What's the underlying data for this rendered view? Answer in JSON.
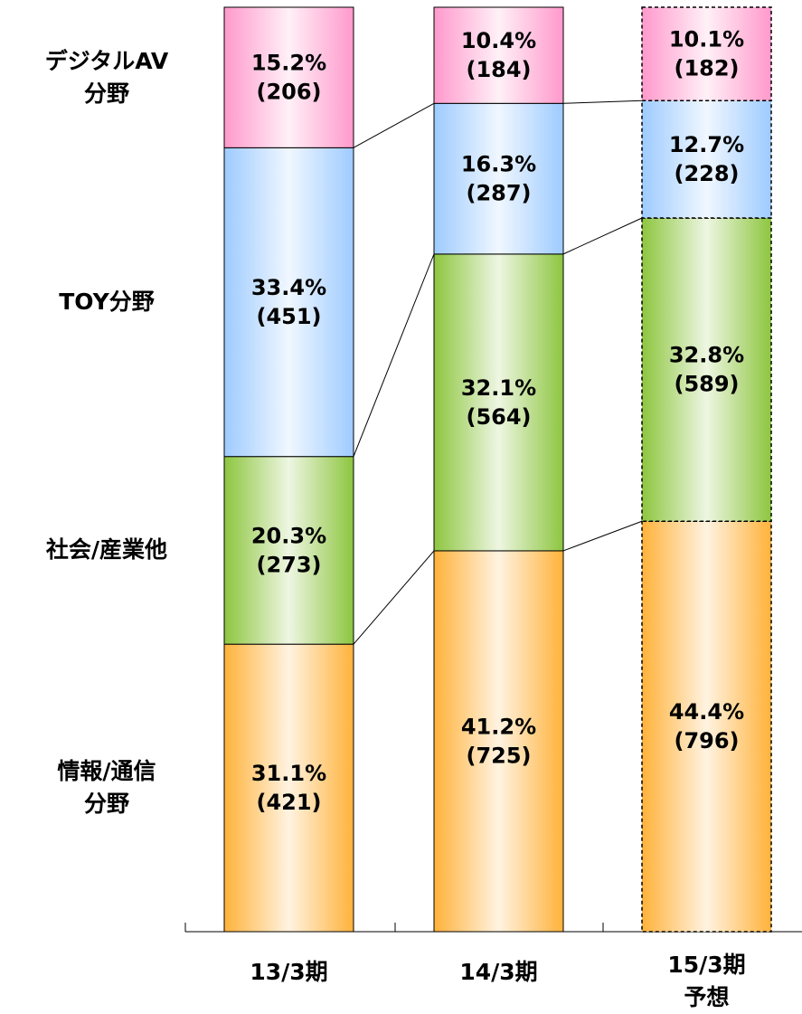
{
  "chart_data": {
    "type": "stacked_bar_100",
    "categories": [
      "13/3期",
      "14/3期",
      "15/3期\n予想"
    ],
    "border_styles": [
      "solid",
      "solid",
      "dashed"
    ],
    "ylim": [
      0,
      100
    ],
    "series": [
      {
        "name": "情報/通信\n分野",
        "color": "#ffb23a",
        "values": [
          31.1,
          41.2,
          44.4
        ],
        "value_labels": [
          "31.1%",
          "41.2%",
          "44.4%"
        ],
        "counts": [
          421,
          725,
          796
        ],
        "count_labels": [
          "(421)",
          "(725)",
          "(796)"
        ]
      },
      {
        "name": "社会/産業他",
        "color": "#8dc63f",
        "values": [
          20.3,
          32.1,
          32.8
        ],
        "value_labels": [
          "20.3%",
          "32.1%",
          "32.8%"
        ],
        "counts": [
          273,
          564,
          589
        ],
        "count_labels": [
          "(273)",
          "(564)",
          "(589)"
        ]
      },
      {
        "name": "TOY分野",
        "color": "#9ecbff",
        "values": [
          33.4,
          16.3,
          12.7
        ],
        "value_labels": [
          "33.4%",
          "16.3%",
          "12.7%"
        ],
        "counts": [
          451,
          287,
          228
        ],
        "count_labels": [
          "(451)",
          "(287)",
          "(228)"
        ]
      },
      {
        "name": "デジタルAV\n分野",
        "color": "#ff99cc",
        "values": [
          15.2,
          10.4,
          10.1
        ],
        "value_labels": [
          "15.2%",
          "10.4%",
          "10.1%"
        ],
        "counts": [
          206,
          184,
          182
        ],
        "count_labels": [
          "(206)",
          "(184)",
          "(182)"
        ]
      }
    ]
  }
}
